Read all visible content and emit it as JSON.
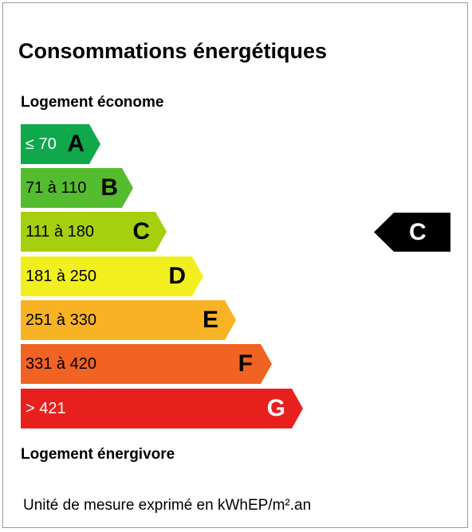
{
  "title": "Consommations énergétiques",
  "label_top": "Logement économe",
  "label_bottom": "Logement énergivore",
  "classes": [
    {
      "range": "≤ 70",
      "letter": "A",
      "color": "#0fa84b",
      "text_color": "#ffffff"
    },
    {
      "range": "71 à 110",
      "letter": "B",
      "color": "#55bc2f",
      "text_color": "#000000"
    },
    {
      "range": "111 à 180",
      "letter": "C",
      "color": "#a6d00d",
      "text_color": "#000000"
    },
    {
      "range": "181 à 250",
      "letter": "D",
      "color": "#f1f01e",
      "text_color": "#000000"
    },
    {
      "range": "251 à 330",
      "letter": "E",
      "color": "#f8b325",
      "text_color": "#000000"
    },
    {
      "range": "331 à 420",
      "letter": "F",
      "color": "#f06322",
      "text_color": "#000000"
    },
    {
      "range": "> 421",
      "letter": "G",
      "color": "#e8201d",
      "text_color": "#ffffff"
    }
  ],
  "indicator": {
    "letter": "C",
    "color": "#000000"
  },
  "unit": "Unité de mesure exprimé en kWhEP/m².an"
}
